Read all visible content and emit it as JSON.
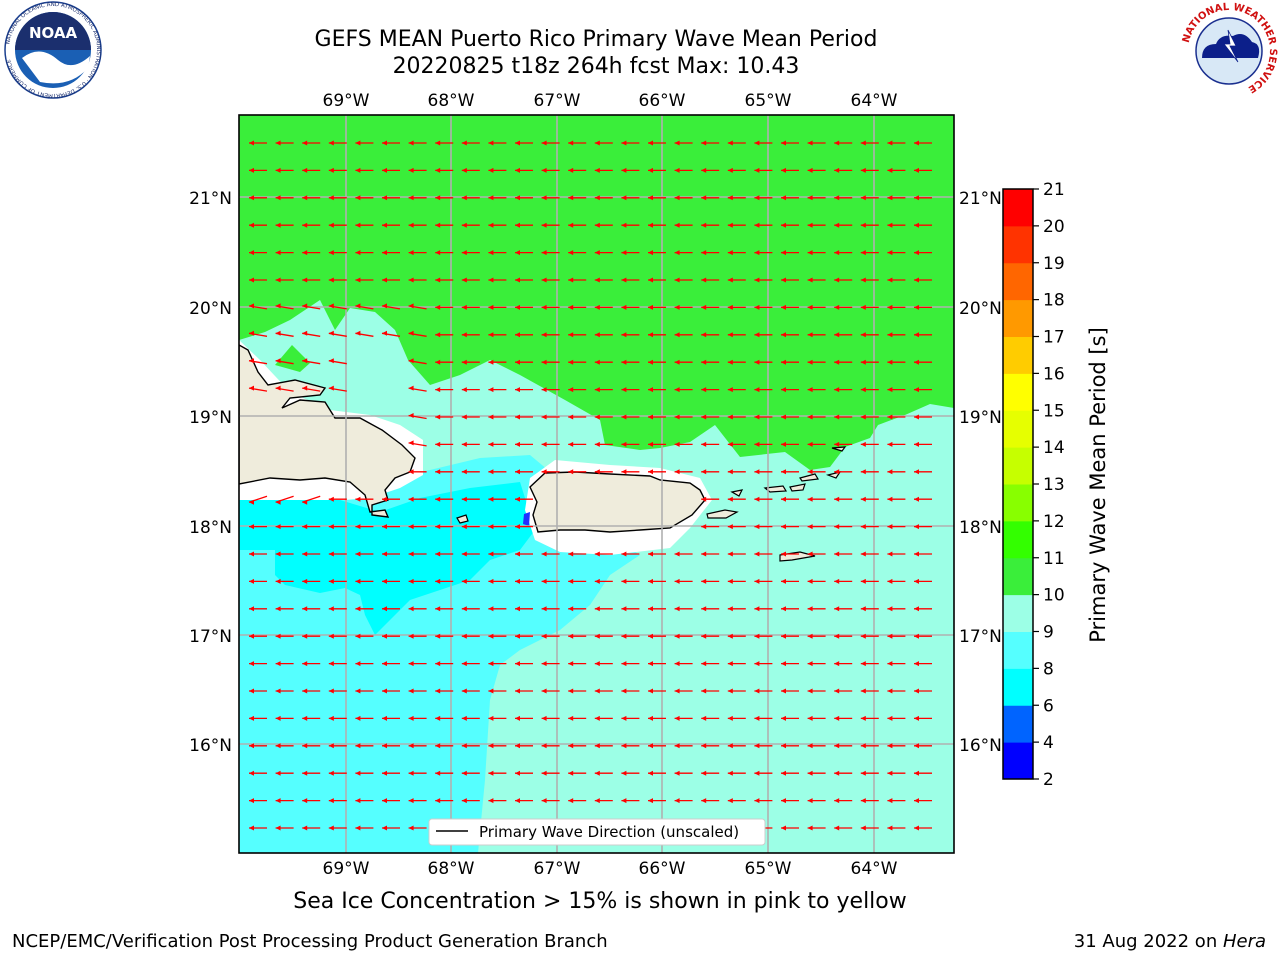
{
  "title_line1": "GEFS MEAN Puerto Rico Primary Wave Mean Period",
  "title_line2": "20220825 t18z 264h fcst   Max: 10.43",
  "caption": "Sea Ice Concentration > 15% is shown in pink to yellow",
  "footer_left": "NCEP/EMC/Verification Post Processing Product Generation Branch",
  "footer_right_date": "31 Aug 2022 on ",
  "footer_right_host": "Hera",
  "lon_labels": [
    "69°W",
    "68°W",
    "67°W",
    "66°W",
    "65°W",
    "64°W"
  ],
  "lat_labels": [
    "21°N",
    "20°N",
    "19°N",
    "18°N",
    "17°N",
    "16°N"
  ],
  "legend_label": "Primary Wave Direction (unscaled)",
  "colorbar": {
    "label": "Primary Wave Mean Period [s]",
    "ticks": [
      "2",
      "4",
      "6",
      "8",
      "9",
      "10",
      "11",
      "12",
      "13",
      "14",
      "15",
      "16",
      "17",
      "18",
      "19",
      "20",
      "21"
    ],
    "colors": [
      "#0000ff",
      "#0064ff",
      "#00ffff",
      "#55ffff",
      "#9cffe6",
      "#3aee3a",
      "#33ff00",
      "#88ff00",
      "#c6ff00",
      "#e6ff00",
      "#ffff00",
      "#ffcc00",
      "#ff9900",
      "#ff6600",
      "#ff3300",
      "#ff0000"
    ]
  },
  "logos": {
    "noaa_text": "NOAA",
    "noaa_ring": "NATIONAL OCEANIC AND ATMOSPHERIC ADMINISTRATION · U.S. DEPARTMENT OF COMMERCE",
    "nws_ring": "NATIONAL WEATHER SERVICE"
  },
  "field_colors": {
    "green": "#3aee3a",
    "pale": "#9cffe6",
    "cyan_light": "#55ffff",
    "cyan": "#00ffff",
    "land": "#efecdc",
    "arrow": "#ff0000"
  }
}
